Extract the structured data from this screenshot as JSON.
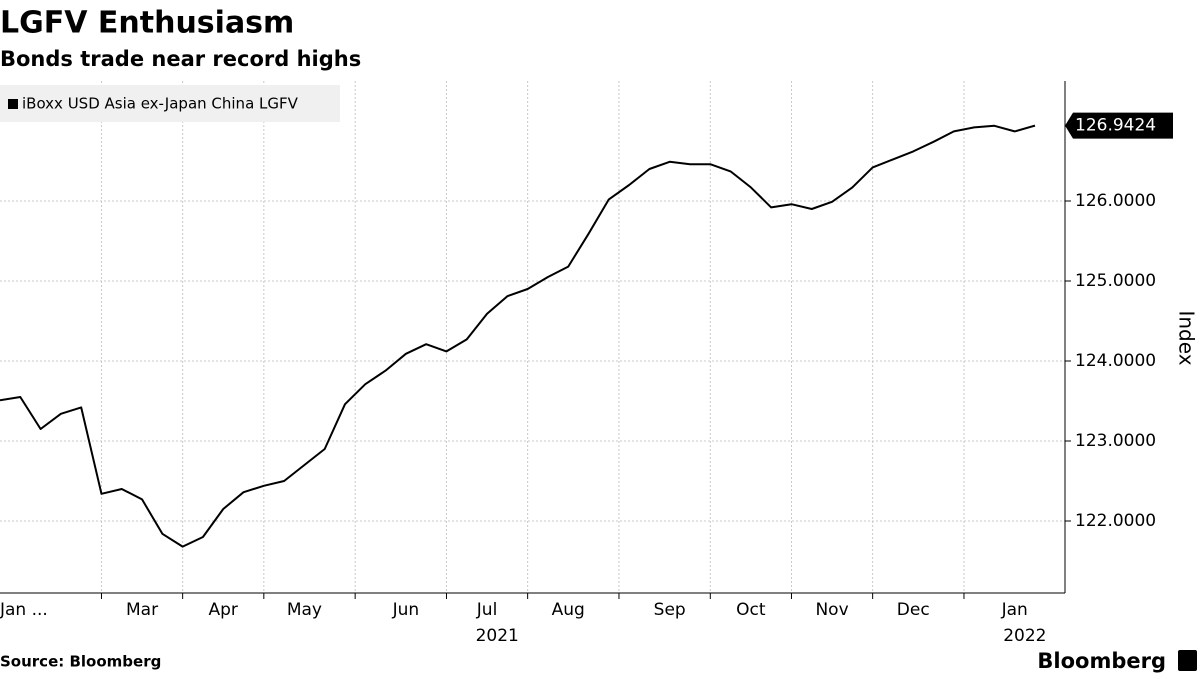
{
  "chart_data": {
    "type": "line",
    "title": "LGFV Enthusiasm",
    "subtitle": "Bonds trade near record highs",
    "y_axis_label": "Index",
    "source": "Source: Bloomberg",
    "brand": "Bloomberg",
    "categories": [
      "Jan ...",
      null,
      null,
      null,
      null,
      null,
      null,
      "Mar",
      null,
      null,
      null,
      "Apr",
      null,
      null,
      null,
      "May",
      null,
      null,
      null,
      null,
      "Jun",
      null,
      null,
      null,
      "Jul",
      null,
      null,
      null,
      "Aug",
      null,
      null,
      null,
      null,
      "Sep",
      null,
      null,
      null,
      "Oct",
      null,
      null,
      null,
      "Nov",
      null,
      null,
      null,
      "Dec",
      null,
      null,
      null,
      null,
      "Jan",
      null
    ],
    "year_groups": [
      {
        "label": "2021",
        "from": 0,
        "to": 49
      },
      {
        "label": "2022",
        "from": 50,
        "to": 51
      }
    ],
    "series": [
      {
        "name": "iBoxx USD Asia ex-Japan China LGFV",
        "color": "#000000",
        "values": [
          123.51,
          123.55,
          123.15,
          123.34,
          123.42,
          122.34,
          122.4,
          122.27,
          121.84,
          121.68,
          121.8,
          122.15,
          122.36,
          122.44,
          122.5,
          122.7,
          122.9,
          123.46,
          123.71,
          123.88,
          124.09,
          124.21,
          124.12,
          124.27,
          124.59,
          124.81,
          124.9,
          125.05,
          125.18,
          125.59,
          126.02,
          126.2,
          126.4,
          126.49,
          126.46,
          126.46,
          126.37,
          126.17,
          125.92,
          125.96,
          125.9,
          125.99,
          126.17,
          126.42,
          126.52,
          126.62,
          126.74,
          126.87,
          126.92,
          126.94,
          126.87,
          126.9424
        ]
      }
    ],
    "ylim": [
      121.1,
      127.5
    ],
    "yticks": [
      {
        "value": 122,
        "label": "122.0000"
      },
      {
        "value": 123,
        "label": "123.0000"
      },
      {
        "value": 124,
        "label": "124.0000"
      },
      {
        "value": 125,
        "label": "125.0000"
      },
      {
        "value": 126,
        "label": "126.0000"
      }
    ],
    "grid": true,
    "legend": "top-left"
  }
}
